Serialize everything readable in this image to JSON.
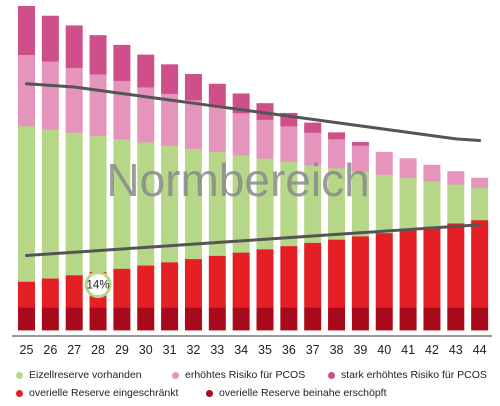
{
  "chart_data": {
    "type": "bar",
    "stacked": true,
    "categories": [
      "25",
      "26",
      "27",
      "28",
      "29",
      "30",
      "31",
      "32",
      "33",
      "34",
      "35",
      "36",
      "37",
      "38",
      "39",
      "40",
      "41",
      "42",
      "43",
      "44"
    ],
    "ylim": [
      0,
      100
    ],
    "watermark": "Normbereich",
    "annotation": {
      "category": "28",
      "label": "14%"
    },
    "series": [
      {
        "name": "overielle Reserve beinahe erschöpft",
        "color": "#a80a1c",
        "values": [
          7,
          7,
          7,
          7,
          7,
          7,
          7,
          7,
          7,
          7,
          7,
          7,
          7,
          7,
          7,
          7,
          7,
          7,
          7,
          7
        ]
      },
      {
        "name": "overielle Reserve eingeschränkt",
        "color": "#e41f26",
        "values": [
          8,
          9,
          10,
          11,
          12,
          13,
          14,
          15,
          16,
          17,
          18,
          19,
          20,
          21,
          22,
          23,
          24,
          25,
          26,
          27
        ]
      },
      {
        "name": "Eizellreserve vorhanden",
        "color": "#b6d787",
        "values": [
          48,
          46,
          44,
          42,
          40,
          38,
          36,
          34,
          32,
          30,
          28,
          26,
          24,
          22,
          20,
          18,
          16,
          14,
          12,
          10
        ]
      },
      {
        "name": "erhöhtes Risiko für PCOS",
        "color": "#e595bc",
        "values": [
          22,
          21,
          20,
          19,
          18,
          17,
          16,
          15,
          14,
          13,
          12,
          11,
          10,
          9,
          8,
          7,
          6,
          5,
          4,
          3
        ]
      },
      {
        "name": "stark erhöhtes Risiko für PCOS",
        "color": "#cf4f8a",
        "values": [
          15,
          14,
          13,
          12,
          11,
          10,
          9,
          8,
          7,
          6,
          5,
          4,
          3,
          2,
          1,
          0,
          0,
          0,
          0,
          0
        ]
      }
    ],
    "upper_curve": [
      76,
      75.5,
      75,
      74,
      73,
      72,
      71,
      70,
      69,
      68,
      67,
      66,
      65,
      64,
      63,
      62,
      61,
      60,
      59,
      58.5
    ],
    "lower_curve": [
      23,
      23.5,
      24,
      24.5,
      25,
      25.5,
      26,
      26.5,
      27,
      27.5,
      28,
      28.5,
      29,
      29.5,
      30,
      30.5,
      31,
      31.5,
      32,
      32.5
    ],
    "legend_position": "bottom"
  }
}
